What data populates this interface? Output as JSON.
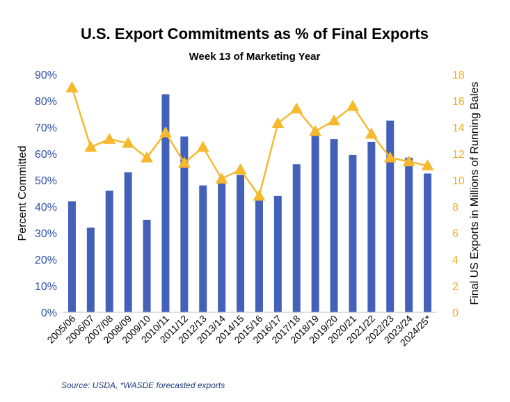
{
  "chart_data": {
    "type": "bar+line",
    "title": "U.S. Export Commitments as % of Final Exports",
    "subtitle": "Week 13 of Marketing Year",
    "categories": [
      "2005/06",
      "2006/07",
      "2007/08",
      "2008/09",
      "2009/10",
      "2010/11",
      "2011/12",
      "2012/13",
      "2013/14",
      "2014/15",
      "2015/16",
      "2016/17",
      "2017/18",
      "2018/19",
      "2019/20",
      "2020/21",
      "2021/22",
      "2022/23",
      "2023/24",
      "2024/25*"
    ],
    "series": [
      {
        "type": "bar",
        "axis": "left",
        "color": "#4361b8",
        "values": [
          42,
          32,
          46,
          53,
          35,
          82.5,
          66.5,
          48,
          49,
          52,
          43,
          44,
          56,
          67,
          65.5,
          59.5,
          64.5,
          72.5,
          58.5,
          52.5
        ]
      },
      {
        "type": "line",
        "axis": "right",
        "marker": "triangle",
        "color": "#f6b92e",
        "values": [
          17.0,
          12.5,
          13.1,
          12.8,
          11.7,
          13.6,
          11.3,
          12.5,
          10.1,
          10.8,
          8.8,
          14.3,
          15.4,
          13.7,
          14.5,
          15.6,
          13.5,
          11.7,
          11.4,
          11.1
        ]
      }
    ],
    "ylabel_left": "Percent Committed",
    "ylabel_right": "Final US Exports in Millions of Running Bales",
    "ylim_left": [
      0,
      90
    ],
    "ylim_right": [
      0,
      18
    ],
    "yticks_left": [
      "0%",
      "10%",
      "20%",
      "30%",
      "40%",
      "50%",
      "60%",
      "70%",
      "80%",
      "90%"
    ],
    "yticks_right": [
      "0",
      "2",
      "4",
      "6",
      "8",
      "10",
      "12",
      "14",
      "16",
      "18"
    ],
    "grid": false,
    "source": "Source: USDA, *WASDE forecasted exports",
    "colors": {
      "bar": "#4361b8",
      "line": "#f6b92e",
      "left_axis_text": "#2e4fa8",
      "right_axis_text": "#f0ae1e",
      "source_text": "#1f3a7a"
    }
  }
}
